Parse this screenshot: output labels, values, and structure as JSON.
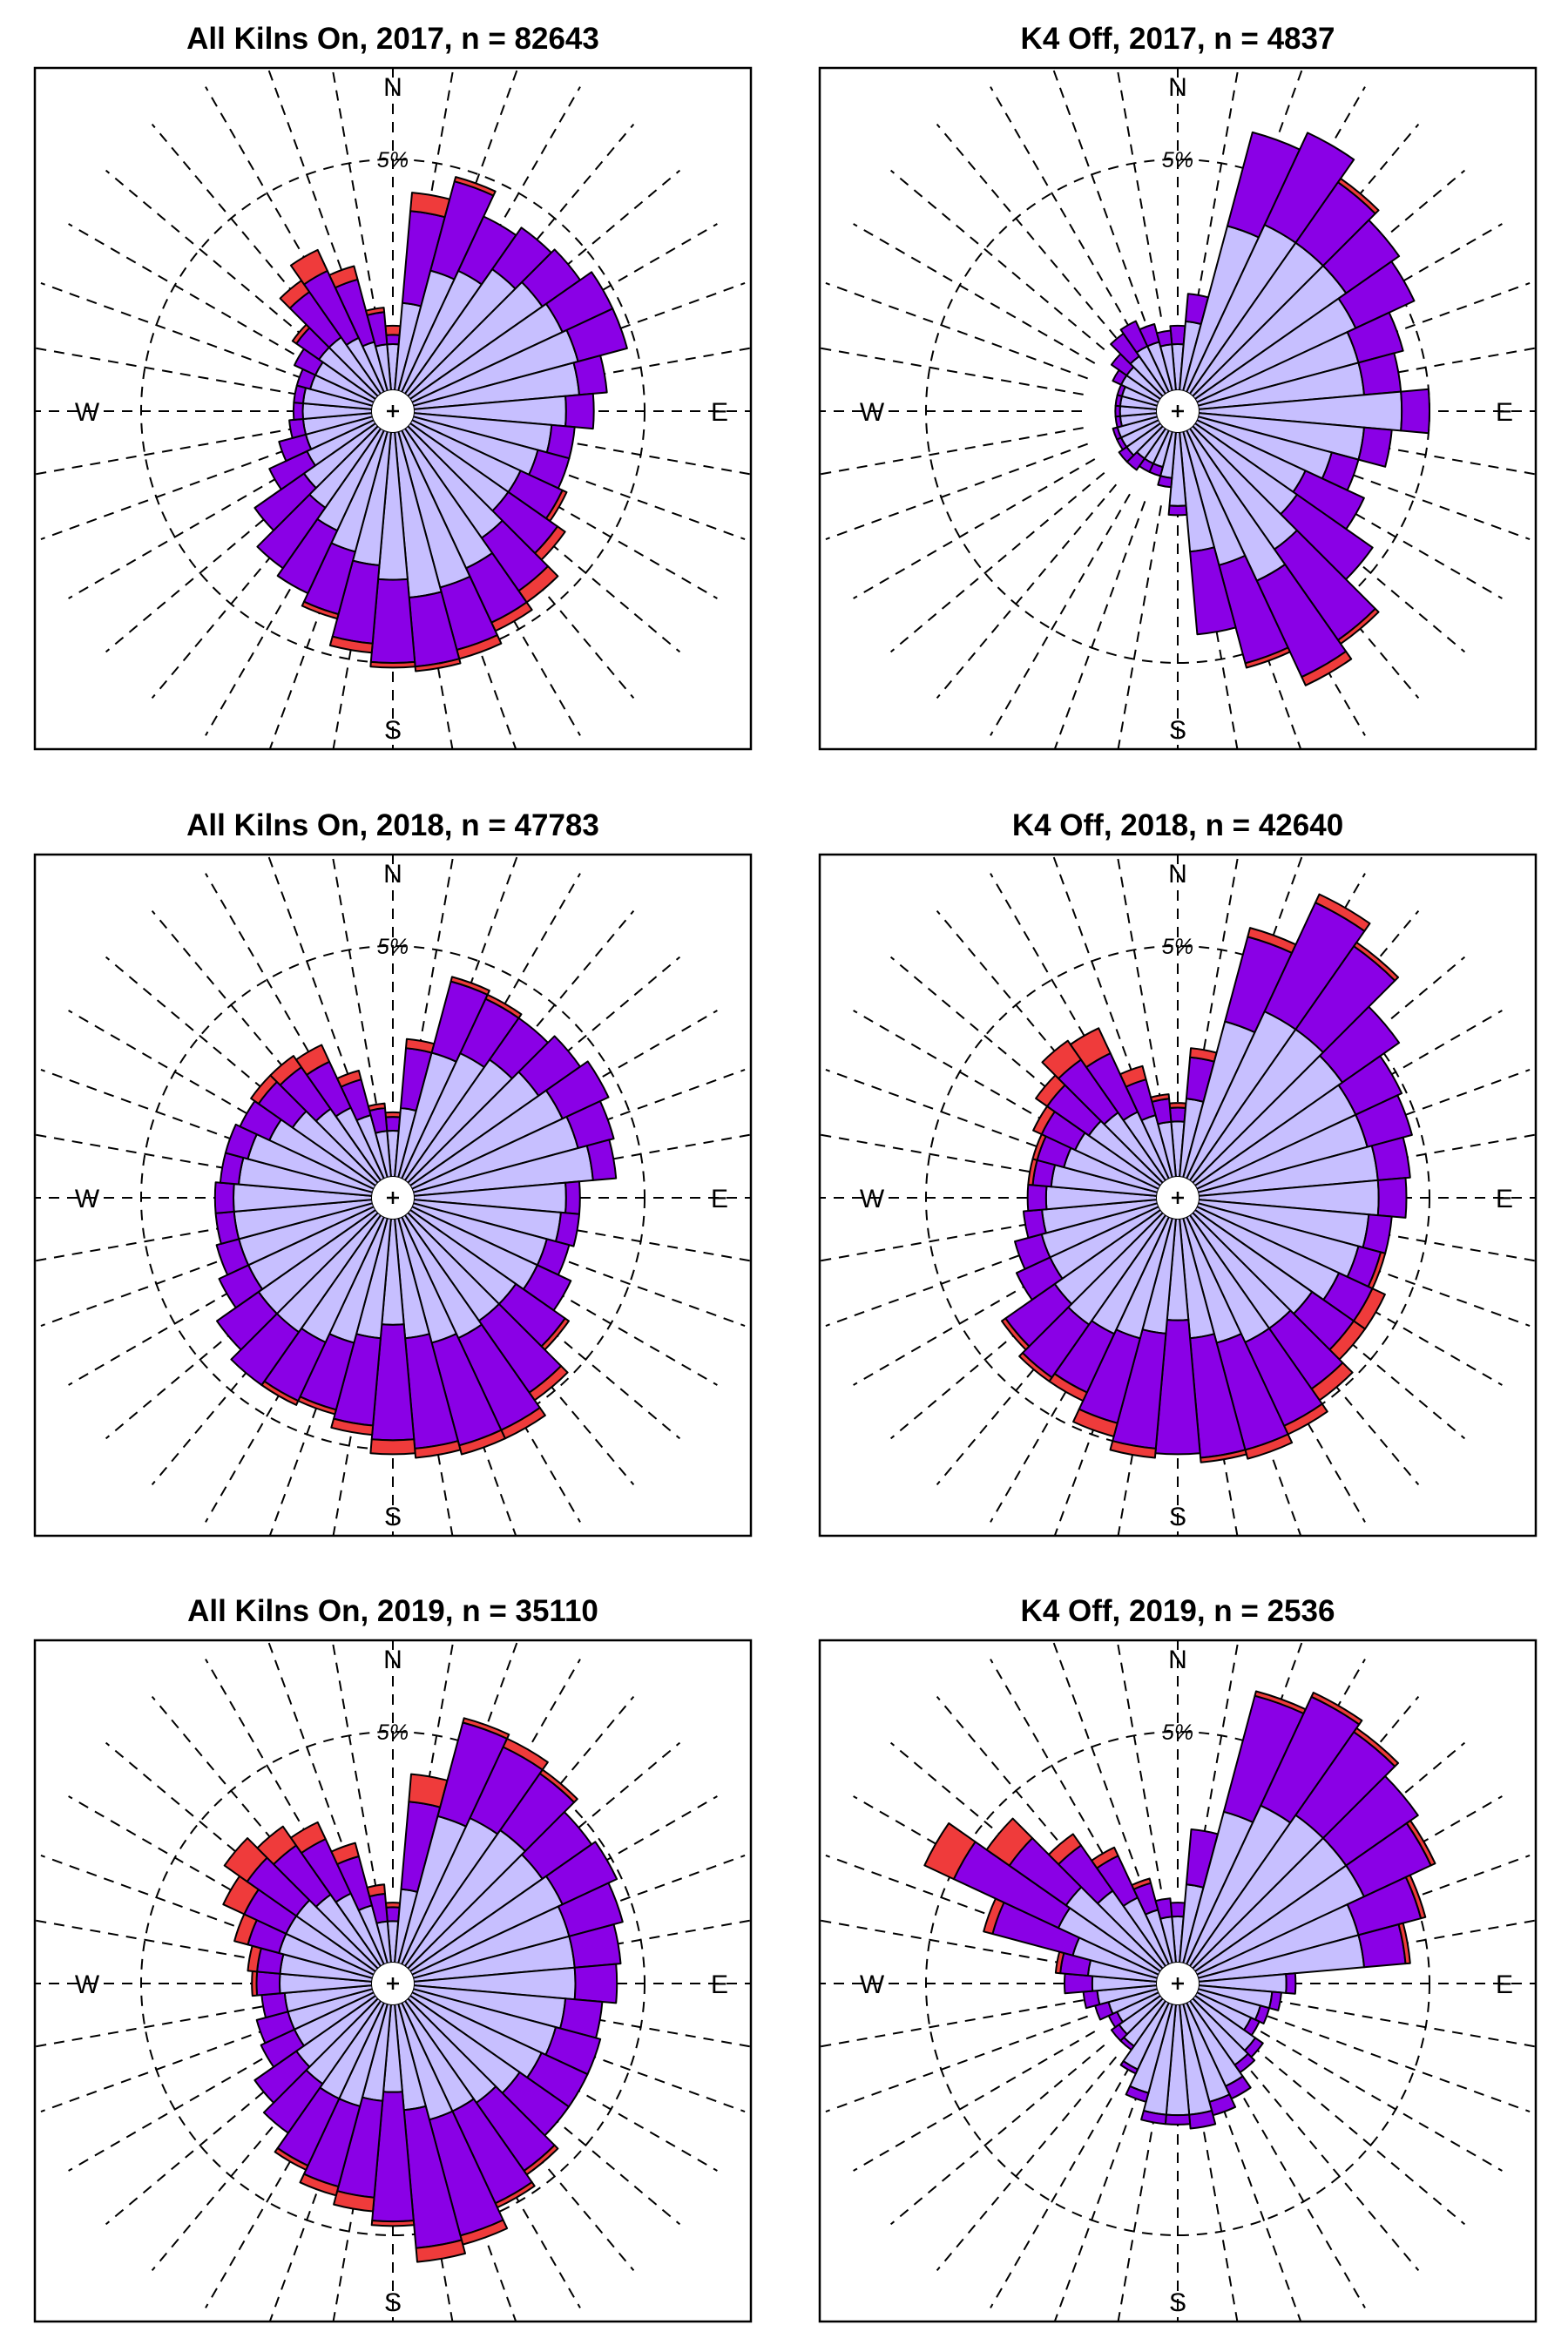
{
  "figure": {
    "colors": {
      "light": "#c7bfff",
      "mid": "#8a00e6",
      "high": "#ef3b3b",
      "outline": "#000000",
      "grid": "#000000",
      "background": "#ffffff"
    },
    "compass_labels": [
      "N",
      "E",
      "S",
      "W"
    ],
    "ring_label": "5%",
    "legend": null
  },
  "chart_data": [
    {
      "type": "windrose",
      "title": "All Kilns On, 2017, n = 82643",
      "directions_deg": [
        0,
        10,
        20,
        30,
        40,
        50,
        60,
        70,
        80,
        90,
        100,
        110,
        120,
        130,
        140,
        150,
        160,
        170,
        180,
        190,
        200,
        210,
        220,
        230,
        240,
        250,
        260,
        270,
        280,
        290,
        300,
        310,
        320,
        330,
        340,
        350
      ],
      "ring_percent": 5,
      "stack_order": [
        "light",
        "mid",
        "high"
      ],
      "light_pct": [
        1.0,
        1.9,
        2.7,
        2.9,
        3.3,
        3.5,
        3.6,
        3.7,
        3.6,
        3.3,
        3.0,
        2.8,
        2.6,
        2.6,
        2.9,
        3.3,
        3.5,
        3.6,
        3.2,
        2.9,
        2.7,
        2.4,
        2.1,
        1.9,
        1.6,
        1.5,
        1.5,
        1.5,
        1.5,
        1.4,
        1.4,
        1.5,
        1.5,
        1.3,
        1.1,
        1.0
      ],
      "mid_pct": [
        0.2,
        2.0,
        2.0,
        1.3,
        1.1,
        1.0,
        1.2,
        1.1,
        0.6,
        0.6,
        0.5,
        0.7,
        1.0,
        1.3,
        1.4,
        1.3,
        1.4,
        1.5,
        1.8,
        1.7,
        1.4,
        1.5,
        1.6,
        1.3,
        0.9,
        0.6,
        0.3,
        0.2,
        0.2,
        0.3,
        0.5,
        0.6,
        1.2,
        1.6,
        1.4,
        0.7
      ],
      "high_pct": [
        0.2,
        0.4,
        0.1,
        0.0,
        0.0,
        0.0,
        0.0,
        0.0,
        0.0,
        0.0,
        0.0,
        0.0,
        0.1,
        0.2,
        0.3,
        0.2,
        0.2,
        0.1,
        0.1,
        0.2,
        0.1,
        0.0,
        0.0,
        0.0,
        0.0,
        0.0,
        0.0,
        0.0,
        0.0,
        0.0,
        0.0,
        0.1,
        0.3,
        0.5,
        0.3,
        0.1
      ]
    },
    {
      "type": "windrose",
      "title": "K4 Off, 2017, n = 4837",
      "directions_deg": [
        0,
        10,
        20,
        30,
        40,
        50,
        60,
        70,
        80,
        90,
        100,
        110,
        120,
        130,
        140,
        150,
        160,
        170,
        180,
        190,
        200,
        210,
        220,
        230,
        240,
        250,
        260,
        270,
        280,
        290,
        300,
        310,
        320,
        330,
        340,
        350
      ],
      "ring_percent": 5,
      "stack_order": [
        "light",
        "mid",
        "high"
      ],
      "light_pct": [
        1.0,
        1.5,
        3.7,
        4.0,
        4.0,
        4.0,
        3.8,
        3.6,
        3.6,
        4.4,
        3.6,
        3.0,
        2.6,
        2.7,
        3.2,
        3.6,
        3.0,
        2.6,
        1.6,
        1.0,
        0.8,
        0.8,
        0.8,
        0.9,
        0.9,
        0.9,
        0.8,
        0.8,
        0.8,
        0.8,
        0.9,
        0.9,
        1.0,
        1.1,
        1.1,
        1.0
      ],
      "mid_pct": [
        0.4,
        0.6,
        2.1,
        2.2,
        1.6,
        1.4,
        1.4,
        1.0,
        0.8,
        0.6,
        0.6,
        0.6,
        1.4,
        2.0,
        2.4,
        2.3,
        2.2,
        1.8,
        0.2,
        0.2,
        0.2,
        0.2,
        0.3,
        0.2,
        0.1,
        0.1,
        0.1,
        0.1,
        0.1,
        0.1,
        0.2,
        0.4,
        0.6,
        0.6,
        0.4,
        0.3
      ],
      "high_pct": [
        0.0,
        0.0,
        0.0,
        0.0,
        0.1,
        0.0,
        0.0,
        0.0,
        0.0,
        0.0,
        0.0,
        0.0,
        0.0,
        0.0,
        0.1,
        0.2,
        0.1,
        0.0,
        0.0,
        0.0,
        0.0,
        0.0,
        0.0,
        0.0,
        0.0,
        0.0,
        0.0,
        0.0,
        0.0,
        0.0,
        0.0,
        0.0,
        0.0,
        0.0,
        0.0,
        0.0
      ]
    },
    {
      "type": "windrose",
      "title": "All Kilns On, 2018, n = 47783",
      "directions_deg": [
        0,
        10,
        20,
        30,
        40,
        50,
        60,
        70,
        80,
        90,
        100,
        110,
        120,
        130,
        140,
        150,
        160,
        170,
        180,
        190,
        200,
        210,
        220,
        230,
        240,
        250,
        260,
        270,
        280,
        290,
        300,
        310,
        320,
        330,
        340,
        350
      ],
      "ring_percent": 5,
      "stack_order": [
        "light",
        "mid",
        "high"
      ],
      "light_pct": [
        1.0,
        1.5,
        2.8,
        3.0,
        3.2,
        3.4,
        3.6,
        3.7,
        3.9,
        3.3,
        3.2,
        3.0,
        3.0,
        2.8,
        2.8,
        2.9,
        2.8,
        2.6,
        2.3,
        2.6,
        2.8,
        3.0,
        3.1,
        3.1,
        3.0,
        3.0,
        3.0,
        3.0,
        2.9,
        2.8,
        2.5,
        2.2,
        1.9,
        1.7,
        1.4,
        1.0
      ],
      "mid_pct": [
        0.3,
        1.3,
        1.6,
        1.3,
        1.1,
        1.1,
        1.1,
        0.8,
        0.5,
        0.3,
        0.4,
        0.5,
        0.8,
        1.3,
        1.9,
        2.2,
        2.3,
        2.4,
        2.5,
        1.9,
        1.5,
        1.4,
        1.4,
        1.1,
        0.7,
        0.5,
        0.4,
        0.4,
        0.4,
        0.5,
        0.7,
        0.9,
        1.1,
        1.1,
        0.8,
        0.5
      ],
      "high_pct": [
        0.1,
        0.2,
        0.1,
        0.1,
        0.0,
        0.0,
        0.0,
        0.0,
        0.0,
        0.0,
        0.0,
        0.0,
        0.0,
        0.1,
        0.2,
        0.2,
        0.2,
        0.2,
        0.3,
        0.2,
        0.1,
        0.1,
        0.0,
        0.0,
        0.0,
        0.0,
        0.0,
        0.0,
        0.0,
        0.0,
        0.0,
        0.2,
        0.3,
        0.4,
        0.2,
        0.1
      ]
    },
    {
      "type": "windrose",
      "title": "K4 Off, 2018, n = 42640",
      "directions_deg": [
        0,
        10,
        20,
        30,
        40,
        50,
        60,
        70,
        80,
        90,
        100,
        110,
        120,
        130,
        140,
        150,
        160,
        170,
        180,
        190,
        200,
        210,
        220,
        230,
        240,
        250,
        260,
        270,
        280,
        290,
        300,
        310,
        320,
        330,
        340,
        350
      ],
      "ring_percent": 5,
      "stack_order": [
        "light",
        "mid",
        "high"
      ],
      "light_pct": [
        1.2,
        1.7,
        3.5,
        4.0,
        4.0,
        3.9,
        3.8,
        3.8,
        3.9,
        3.9,
        3.7,
        3.6,
        3.4,
        3.1,
        3.0,
        3.0,
        2.8,
        2.6,
        2.2,
        2.5,
        2.7,
        2.8,
        2.9,
        2.8,
        2.6,
        2.6,
        2.5,
        2.4,
        2.3,
        2.1,
        2.0,
        1.9,
        1.8,
        1.6,
        1.4,
        1.2
      ],
      "mid_pct": [
        0.3,
        0.9,
        1.9,
        2.6,
        2.2,
        1.5,
        1.1,
        1.0,
        0.7,
        0.6,
        0.5,
        0.5,
        0.8,
        1.1,
        1.6,
        2.0,
        2.4,
        2.6,
        2.9,
        2.5,
        1.9,
        1.4,
        1.4,
        1.3,
        0.8,
        0.6,
        0.4,
        0.4,
        0.4,
        0.6,
        0.8,
        1.1,
        1.4,
        1.4,
        0.8,
        0.5
      ],
      "high_pct": [
        0.1,
        0.2,
        0.2,
        0.2,
        0.1,
        0.0,
        0.0,
        0.0,
        0.0,
        0.0,
        0.0,
        0.1,
        0.3,
        0.3,
        0.3,
        0.2,
        0.2,
        0.1,
        0.0,
        0.2,
        0.3,
        0.2,
        0.1,
        0.1,
        0.0,
        0.0,
        0.0,
        0.0,
        0.1,
        0.1,
        0.2,
        0.3,
        0.5,
        0.6,
        0.3,
        0.1
      ]
    },
    {
      "type": "windrose",
      "title": "All Kilns On, 2019, n = 35110",
      "directions_deg": [
        0,
        10,
        20,
        30,
        40,
        50,
        60,
        70,
        80,
        90,
        100,
        110,
        120,
        130,
        140,
        150,
        160,
        170,
        180,
        190,
        200,
        210,
        220,
        230,
        240,
        250,
        260,
        270,
        280,
        290,
        300,
        310,
        320,
        330,
        340,
        350
      ],
      "ring_percent": 5,
      "stack_order": [
        "light",
        "mid",
        "high"
      ],
      "light_pct": [
        0.9,
        1.6,
        3.3,
        3.5,
        3.6,
        3.5,
        3.6,
        3.5,
        3.5,
        3.5,
        3.3,
        3.2,
        3.1,
        2.9,
        2.7,
        2.6,
        2.6,
        2.3,
        1.9,
        2.1,
        2.3,
        2.3,
        2.2,
        2.1,
        1.9,
        1.9,
        1.9,
        2.0,
        2.0,
        2.1,
        2.1,
        2.1,
        1.9,
        1.7,
        1.3,
        0.9
      ],
      "mid_pct": [
        0.3,
        1.9,
        2.1,
        1.7,
        1.5,
        1.3,
        1.3,
        1.2,
        1.0,
        0.9,
        0.8,
        1.0,
        1.1,
        1.3,
        1.8,
        2.2,
        2.6,
        3.0,
        2.8,
        2.1,
        1.8,
        1.6,
        1.3,
        1.1,
        0.8,
        0.7,
        0.5,
        0.5,
        0.5,
        0.7,
        1.0,
        1.3,
        1.3,
        1.3,
        1.1,
        0.6
      ],
      "high_pct": [
        0.1,
        0.6,
        0.1,
        0.2,
        0.1,
        0.0,
        0.0,
        0.0,
        0.0,
        0.0,
        0.0,
        0.0,
        0.0,
        0.0,
        0.1,
        0.1,
        0.2,
        0.3,
        0.1,
        0.3,
        0.2,
        0.1,
        0.0,
        0.0,
        0.0,
        0.0,
        0.0,
        0.1,
        0.2,
        0.3,
        0.5,
        0.6,
        0.5,
        0.4,
        0.3,
        0.2
      ]
    },
    {
      "type": "windrose",
      "title": "K4 Off, 2019, n = 2536",
      "directions_deg": [
        0,
        10,
        20,
        30,
        40,
        50,
        60,
        70,
        80,
        90,
        100,
        110,
        120,
        130,
        140,
        150,
        160,
        170,
        180,
        190,
        200,
        210,
        220,
        230,
        240,
        250,
        260,
        270,
        280,
        290,
        300,
        310,
        320,
        330,
        340,
        350
      ],
      "ring_percent": 5,
      "stack_order": [
        "light",
        "mid",
        "high"
      ],
      "light_pct": [
        1.0,
        1.7,
        3.4,
        3.8,
        4.0,
        4.0,
        4.0,
        3.6,
        3.6,
        1.9,
        1.6,
        1.4,
        1.3,
        1.6,
        1.7,
        2.0,
        2.2,
        2.4,
        2.4,
        2.4,
        2.0,
        1.6,
        1.2,
        1.1,
        1.0,
        1.1,
        1.3,
        1.4,
        1.5,
        1.9,
        2.4,
        2.5,
        2.0,
        1.6,
        1.2,
        1.0
      ],
      "mid_pct": [
        0.3,
        1.2,
        2.6,
        2.6,
        2.2,
        1.9,
        1.6,
        1.4,
        0.9,
        0.2,
        0.2,
        0.2,
        0.2,
        0.2,
        0.2,
        0.3,
        0.3,
        0.3,
        0.2,
        0.2,
        0.2,
        0.1,
        0.1,
        0.2,
        0.2,
        0.3,
        0.3,
        0.6,
        0.6,
        1.8,
        2.5,
        1.5,
        1.2,
        1.0,
        0.6,
        0.4
      ],
      "high_pct": [
        0.0,
        0.0,
        0.1,
        0.1,
        0.1,
        0.0,
        0.1,
        0.1,
        0.1,
        0.0,
        0.0,
        0.0,
        0.0,
        0.0,
        0.0,
        0.0,
        0.0,
        0.0,
        0.0,
        0.0,
        0.0,
        0.0,
        0.0,
        0.0,
        0.0,
        0.0,
        0.0,
        0.0,
        0.1,
        0.2,
        0.7,
        0.6,
        0.3,
        0.2,
        0.1,
        0.0
      ]
    }
  ]
}
